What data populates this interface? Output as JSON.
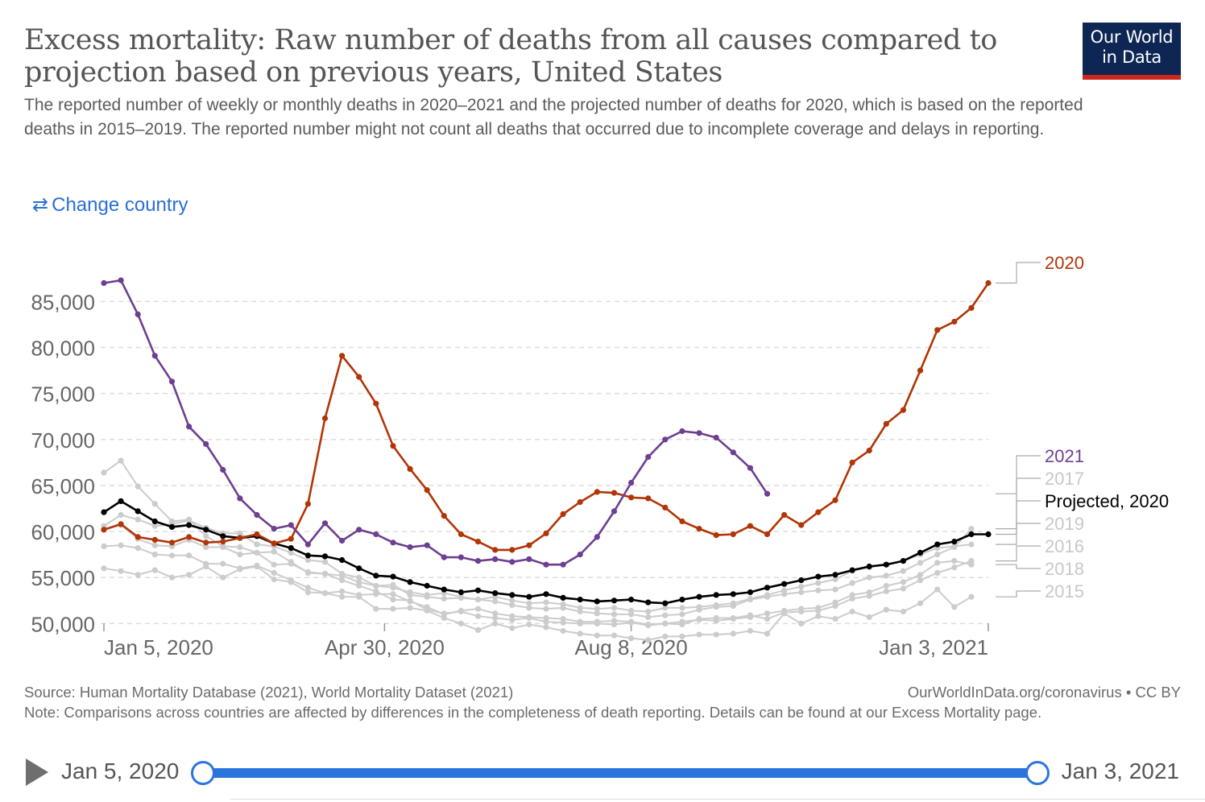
{
  "header": {
    "title": "Excess mortality: Raw number of deaths from all causes compared to projection based on previous years, United States",
    "subtitle": "The reported number of weekly or monthly deaths in 2020–2021 and the projected number of deaths for 2020, which is based on the reported deaths in 2015–2019. The reported number might not count all deaths that occurred due to incomplete coverage and delays in reporting.",
    "logo_line1": "Our World",
    "logo_line2": "in Data",
    "change_country": "Change country"
  },
  "colors": {
    "y2020": "#b13507",
    "y2021": "#6d3e91",
    "projected": "#000000",
    "past": "#cccccc",
    "accent": "#2a75dd"
  },
  "chart_data": {
    "type": "line",
    "x_unit": "week (1–53, Jan 5, 2020 to Jan 3, 2021)",
    "xlim": [
      0.5,
      53
    ],
    "ylim": [
      48000,
      88000
    ],
    "yticks": [
      50000,
      55000,
      60000,
      65000,
      70000,
      75000,
      80000,
      85000
    ],
    "ytick_labels": [
      "50,000",
      "55,000",
      "60,000",
      "65,000",
      "70,000",
      "75,000",
      "80,000",
      "85,000"
    ],
    "xticks": [
      1,
      17.5,
      32,
      53
    ],
    "xtick_labels": [
      "Jan 5, 2020",
      "Apr 30, 2020",
      "Aug 8, 2020",
      "Jan 3, 2021"
    ],
    "series": [
      {
        "name": "2015",
        "color": "#cccccc",
        "x": [
          1,
          2,
          3,
          4,
          5,
          6,
          7,
          8,
          9,
          10,
          11,
          12,
          13,
          14,
          15,
          16,
          17,
          18,
          19,
          20,
          21,
          22,
          23,
          24,
          25,
          26,
          27,
          28,
          29,
          30,
          31,
          32,
          33,
          34,
          35,
          36,
          37,
          38,
          39,
          40,
          41,
          42,
          43,
          44,
          45,
          46,
          47,
          48,
          49,
          50,
          51,
          52,
          53
        ],
        "values": [
          56000,
          55700,
          55300,
          55800,
          55000,
          55300,
          56200,
          55000,
          55900,
          56200,
          54800,
          54500,
          53400,
          53300,
          52900,
          52900,
          51600,
          51600,
          51700,
          51400,
          50600,
          50000,
          49300,
          50000,
          49500,
          49900,
          49600,
          49200,
          48900,
          48700,
          48700,
          48400,
          48200,
          48600,
          48600,
          48800,
          48800,
          48900,
          49200,
          48900,
          51100,
          50000,
          50800,
          50500,
          51300,
          50700,
          51500,
          51300,
          52200,
          53700,
          51800,
          52900,
          null
        ]
      },
      {
        "name": "2016",
        "color": "#cccccc",
        "x": [
          1,
          2,
          3,
          4,
          5,
          6,
          7,
          8,
          9,
          10,
          11,
          12,
          13,
          14,
          15,
          16,
          17,
          18,
          19,
          20,
          21,
          22,
          23,
          24,
          25,
          26,
          27,
          28,
          29,
          30,
          31,
          32,
          33,
          34,
          35,
          36,
          37,
          38,
          39,
          40,
          41,
          42,
          43,
          44,
          45,
          46,
          47,
          48,
          49,
          50,
          51,
          52,
          53
        ],
        "values": [
          58400,
          58500,
          58200,
          57500,
          57400,
          57400,
          56500,
          56500,
          56000,
          56300,
          55500,
          54700,
          53900,
          53300,
          53500,
          53100,
          53200,
          53200,
          52400,
          51800,
          51000,
          51400,
          51600,
          51100,
          50800,
          50700,
          50600,
          50500,
          50200,
          50200,
          50300,
          50200,
          49900,
          50000,
          49900,
          50500,
          50600,
          50600,
          50900,
          50500,
          51200,
          51300,
          51400,
          51900,
          52700,
          53000,
          53500,
          53800,
          54700,
          55500,
          56100,
          56800,
          null
        ]
      },
      {
        "name": "2017",
        "color": "#cccccc",
        "x": [
          1,
          2,
          3,
          4,
          5,
          6,
          7,
          8,
          9,
          10,
          11,
          12,
          13,
          14,
          15,
          16,
          17,
          18,
          19,
          20,
          21,
          22,
          23,
          24,
          25,
          26,
          27,
          28,
          29,
          30,
          31,
          32,
          33,
          34,
          35,
          36,
          37,
          38,
          39,
          40,
          41,
          42,
          43,
          44,
          45,
          46,
          47,
          48,
          49,
          50,
          51,
          52,
          53
        ],
        "values": [
          60600,
          61800,
          61300,
          60600,
          60800,
          61200,
          60400,
          59800,
          59800,
          58600,
          58400,
          57700,
          56900,
          56700,
          55400,
          55000,
          54100,
          54200,
          53100,
          52900,
          52700,
          52800,
          52600,
          52400,
          52000,
          51700,
          51600,
          51700,
          51300,
          51100,
          51000,
          51000,
          50700,
          50900,
          51000,
          51500,
          51800,
          51900,
          52600,
          52900,
          53200,
          53400,
          53600,
          53700,
          54400,
          55000,
          55200,
          55700,
          56600,
          57500,
          58300,
          60300,
          null
        ]
      },
      {
        "name": "2018",
        "color": "#cccccc",
        "x": [
          1,
          2,
          3,
          4,
          5,
          6,
          7,
          8,
          9,
          10,
          11,
          12,
          13,
          14,
          15,
          16,
          17,
          18,
          19,
          20,
          21,
          22,
          23,
          24,
          25,
          26,
          27,
          28,
          29,
          30,
          31,
          32,
          33,
          34,
          35,
          36,
          37,
          38,
          39,
          40,
          41,
          42,
          43,
          44,
          45,
          46,
          47,
          48,
          49,
          50,
          51,
          52,
          53
        ],
        "values": [
          66400,
          67700,
          64900,
          63000,
          61100,
          61300,
          59500,
          58400,
          58300,
          57700,
          57800,
          56700,
          55500,
          55400,
          54700,
          54100,
          53500,
          52600,
          52500,
          51500,
          51100,
          51300,
          50800,
          50600,
          50400,
          50600,
          50200,
          50100,
          50000,
          50000,
          49900,
          50100,
          49800,
          50000,
          50200,
          50400,
          50300,
          50500,
          50700,
          51100,
          51400,
          51600,
          51700,
          52300,
          53100,
          53400,
          54100,
          54500,
          55300,
          56600,
          56800,
          56400,
          null
        ]
      },
      {
        "name": "2019",
        "color": "#cccccc",
        "x": [
          1,
          2,
          3,
          4,
          5,
          6,
          7,
          8,
          9,
          10,
          11,
          12,
          13,
          14,
          15,
          16,
          17,
          18,
          19,
          20,
          21,
          22,
          23,
          24,
          25,
          26,
          27,
          28,
          29,
          30,
          31,
          32,
          33,
          34,
          35,
          36,
          37,
          38,
          39,
          40,
          41,
          42,
          43,
          44,
          45,
          46,
          47,
          48,
          49,
          50,
          51,
          52,
          53
        ],
        "values": [
          60200,
          60700,
          59200,
          58500,
          58400,
          59100,
          58300,
          58300,
          57500,
          57700,
          56400,
          56500,
          55600,
          55400,
          55200,
          54500,
          54100,
          53900,
          53400,
          53100,
          53300,
          52900,
          52600,
          52900,
          52500,
          52200,
          52300,
          52100,
          51700,
          51600,
          51700,
          51400,
          51300,
          51700,
          51700,
          51800,
          52000,
          52200,
          52700,
          53100,
          53600,
          54000,
          54400,
          54800,
          55700,
          56100,
          56400,
          56800,
          57500,
          58200,
          58400,
          58600,
          null
        ]
      },
      {
        "name": "Projected, 2020",
        "color": "#000000",
        "x": [
          1,
          2,
          3,
          4,
          5,
          6,
          7,
          8,
          9,
          10,
          11,
          12,
          13,
          14,
          15,
          16,
          17,
          18,
          19,
          20,
          21,
          22,
          23,
          24,
          25,
          26,
          27,
          28,
          29,
          30,
          31,
          32,
          33,
          34,
          35,
          36,
          37,
          38,
          39,
          40,
          41,
          42,
          43,
          44,
          45,
          46,
          47,
          48,
          49,
          50,
          51,
          52,
          53
        ],
        "values": [
          62100,
          63300,
          62200,
          61100,
          60500,
          60700,
          60200,
          59500,
          59300,
          59500,
          58700,
          58200,
          57400,
          57300,
          56900,
          56000,
          55200,
          55100,
          54500,
          54100,
          53700,
          53400,
          53600,
          53300,
          53100,
          52900,
          53200,
          52800,
          52600,
          52400,
          52500,
          52600,
          52300,
          52200,
          52600,
          52900,
          53100,
          53200,
          53400,
          53900,
          54300,
          54700,
          55100,
          55300,
          55800,
          56200,
          56400,
          56800,
          57700,
          58600,
          58900,
          59700,
          59700
        ]
      },
      {
        "name": "2020",
        "color": "#b13507",
        "x": [
          1,
          2,
          3,
          4,
          5,
          6,
          7,
          8,
          9,
          10,
          11,
          12,
          13,
          14,
          15,
          16,
          17,
          18,
          19,
          20,
          21,
          22,
          23,
          24,
          25,
          26,
          27,
          28,
          29,
          30,
          31,
          32,
          33,
          34,
          35,
          36,
          37,
          38,
          39,
          40,
          41,
          42,
          43,
          44,
          45,
          46,
          47,
          48,
          49,
          50,
          51,
          52,
          53
        ],
        "values": [
          60200,
          60800,
          59400,
          59100,
          58800,
          59400,
          58800,
          58900,
          59300,
          59700,
          58700,
          59200,
          63000,
          72300,
          79100,
          76800,
          73900,
          69300,
          66800,
          64500,
          61700,
          59700,
          58900,
          58000,
          58000,
          58500,
          59800,
          61900,
          63200,
          64300,
          64200,
          63700,
          63600,
          62600,
          61100,
          60300,
          59600,
          59700,
          60600,
          59700,
          61800,
          60700,
          62100,
          63400,
          67500,
          68800,
          71700,
          73200,
          77500,
          81900,
          82800,
          84300,
          87000
        ]
      },
      {
        "name": "2021",
        "color": "#6d3e91",
        "x": [
          1,
          2,
          3,
          4,
          5,
          6,
          7,
          8,
          9,
          10,
          11,
          12,
          13,
          14,
          15,
          16,
          17,
          18,
          19,
          20,
          21,
          22,
          23,
          24,
          25,
          26,
          27,
          28,
          29,
          30,
          31,
          32,
          33,
          34,
          35,
          36,
          37,
          38,
          39,
          40
        ],
        "values": [
          87000,
          87300,
          83600,
          79100,
          76300,
          71400,
          69500,
          66700,
          63600,
          61800,
          60300,
          60700,
          58600,
          60900,
          59000,
          60200,
          59700,
          58800,
          58300,
          58500,
          57200,
          57200,
          56800,
          57000,
          56700,
          57000,
          56400,
          56400,
          57500,
          59400,
          62200,
          65300,
          68100,
          70000,
          70900,
          70700,
          70200,
          68600,
          66900,
          64100
        ]
      }
    ],
    "legend_labels": [
      {
        "name": "2020",
        "label": "2020"
      },
      {
        "name": "2021",
        "label": "2021"
      },
      {
        "name": "2017",
        "label": "2017"
      },
      {
        "name": "Projected, 2020",
        "label": "Projected, 2020"
      },
      {
        "name": "2019",
        "label": "2019"
      },
      {
        "name": "2016",
        "label": "2016"
      },
      {
        "name": "2018",
        "label": "2018"
      },
      {
        "name": "2015",
        "label": "2015"
      }
    ],
    "grid": true,
    "legend": "right"
  },
  "footer": {
    "source": "Source: Human Mortality Database (2021), World Mortality Dataset (2021)",
    "note": "Note: Comparisons across countries are affected by differences in the completeness of death reporting. Details can be found at our Excess Mortality page.",
    "license": "OurWorldInData.org/coronavirus • CC BY"
  },
  "timeline": {
    "start_label": "Jan 5, 2020",
    "end_label": "Jan 3, 2021"
  }
}
